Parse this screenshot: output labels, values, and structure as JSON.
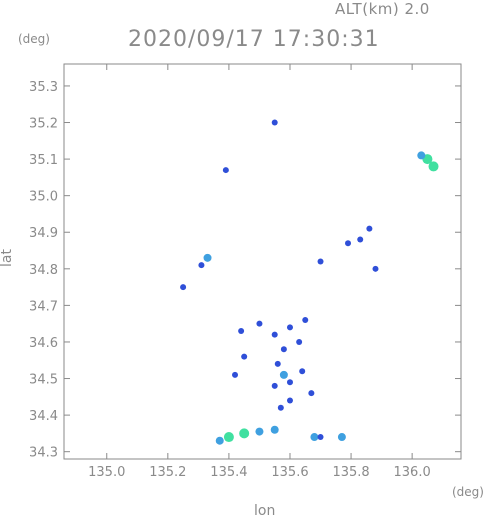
{
  "header": {
    "altitude_label": "ALT(km) 2.0",
    "timestamp": "2020/09/17 17:30:31"
  },
  "axes": {
    "y_unit": "(deg)",
    "x_unit": "(deg)",
    "x_label": "lon",
    "y_label": "lat",
    "x_ticks": [
      "135.0",
      "135.2",
      "135.4",
      "135.6",
      "135.8",
      "136.0"
    ],
    "y_ticks": [
      "35.3",
      "35.2",
      "35.1",
      "35.0",
      "34.9",
      "34.8",
      "34.7",
      "34.6",
      "34.5",
      "34.4",
      "34.3"
    ]
  },
  "chart_data": {
    "type": "heatmap",
    "x_range": [
      134.86,
      136.16
    ],
    "y_range": [
      34.28,
      35.36
    ],
    "x_ticks": [
      135.0,
      135.2,
      135.4,
      135.6,
      135.8,
      136.0
    ],
    "y_ticks": [
      34.3,
      34.4,
      34.5,
      34.6,
      34.7,
      34.8,
      34.9,
      35.0,
      35.1,
      35.2,
      35.3
    ],
    "grid": false,
    "colors": {
      "low": "#2f4fd8",
      "mid": "#3fa0e0",
      "high": "#40e0a0",
      "axis": "#8a8a8a"
    },
    "echoes": [
      {
        "lon": 136.05,
        "lat": 35.1,
        "level": "high"
      },
      {
        "lon": 136.03,
        "lat": 35.11,
        "level": "mid"
      },
      {
        "lon": 136.07,
        "lat": 35.08,
        "level": "high"
      },
      {
        "lon": 135.55,
        "lat": 35.2,
        "level": "low"
      },
      {
        "lon": 135.39,
        "lat": 35.07,
        "level": "low"
      },
      {
        "lon": 135.33,
        "lat": 34.83,
        "level": "mid"
      },
      {
        "lon": 135.31,
        "lat": 34.81,
        "level": "low"
      },
      {
        "lon": 135.25,
        "lat": 34.75,
        "level": "low"
      },
      {
        "lon": 135.86,
        "lat": 34.91,
        "level": "low"
      },
      {
        "lon": 135.83,
        "lat": 34.88,
        "level": "low"
      },
      {
        "lon": 135.79,
        "lat": 34.87,
        "level": "low"
      },
      {
        "lon": 135.88,
        "lat": 34.8,
        "level": "low"
      },
      {
        "lon": 135.7,
        "lat": 34.82,
        "level": "low"
      },
      {
        "lon": 135.5,
        "lat": 34.65,
        "level": "low"
      },
      {
        "lon": 135.55,
        "lat": 34.62,
        "level": "low"
      },
      {
        "lon": 135.6,
        "lat": 34.64,
        "level": "low"
      },
      {
        "lon": 135.65,
        "lat": 34.66,
        "level": "low"
      },
      {
        "lon": 135.63,
        "lat": 34.6,
        "level": "low"
      },
      {
        "lon": 135.58,
        "lat": 34.58,
        "level": "low"
      },
      {
        "lon": 135.56,
        "lat": 34.54,
        "level": "low"
      },
      {
        "lon": 135.58,
        "lat": 34.51,
        "level": "mid"
      },
      {
        "lon": 135.6,
        "lat": 34.49,
        "level": "low"
      },
      {
        "lon": 135.64,
        "lat": 34.52,
        "level": "low"
      },
      {
        "lon": 135.55,
        "lat": 34.48,
        "level": "low"
      },
      {
        "lon": 135.67,
        "lat": 34.46,
        "level": "low"
      },
      {
        "lon": 135.6,
        "lat": 34.44,
        "level": "low"
      },
      {
        "lon": 135.57,
        "lat": 34.42,
        "level": "low"
      },
      {
        "lon": 135.44,
        "lat": 34.63,
        "level": "low"
      },
      {
        "lon": 135.45,
        "lat": 34.56,
        "level": "low"
      },
      {
        "lon": 135.42,
        "lat": 34.51,
        "level": "low"
      },
      {
        "lon": 135.37,
        "lat": 34.33,
        "level": "mid"
      },
      {
        "lon": 135.4,
        "lat": 34.34,
        "level": "high"
      },
      {
        "lon": 135.45,
        "lat": 34.35,
        "level": "high"
      },
      {
        "lon": 135.5,
        "lat": 34.355,
        "level": "mid"
      },
      {
        "lon": 135.55,
        "lat": 34.36,
        "level": "mid"
      },
      {
        "lon": 135.68,
        "lat": 34.34,
        "level": "mid"
      },
      {
        "lon": 135.7,
        "lat": 34.34,
        "level": "low"
      },
      {
        "lon": 135.77,
        "lat": 34.34,
        "level": "mid"
      }
    ]
  }
}
